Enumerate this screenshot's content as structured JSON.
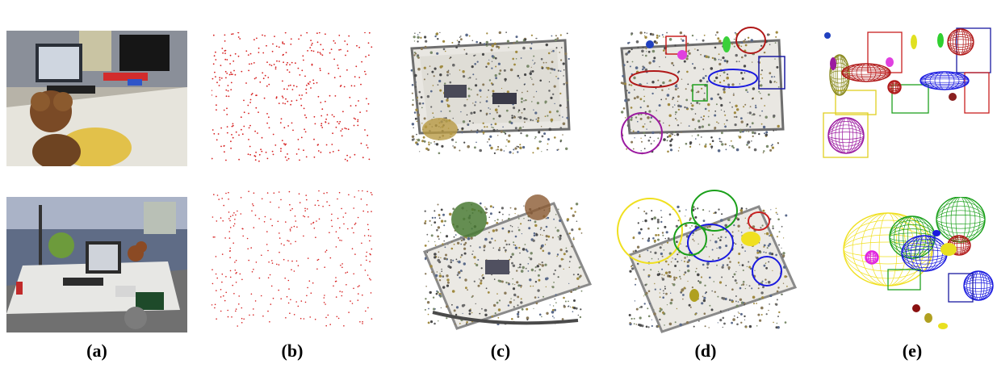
{
  "figure": {
    "panel_labels": [
      "(a)",
      "(b)",
      "(c)",
      "(d)",
      "(e)"
    ]
  },
  "colors": {
    "points_sparse": "#d62020",
    "ellipsoid_red": "#b01818",
    "ellipsoid_blue": "#1a1adf",
    "ellipsoid_purple": "#9b1aa0",
    "ellipsoid_green": "#1aa01a",
    "ellipsoid_yellow": "#f0e020",
    "cube_blue": "#1a1aa0",
    "cube_red": "#c82020",
    "cube_green": "#20a020"
  }
}
